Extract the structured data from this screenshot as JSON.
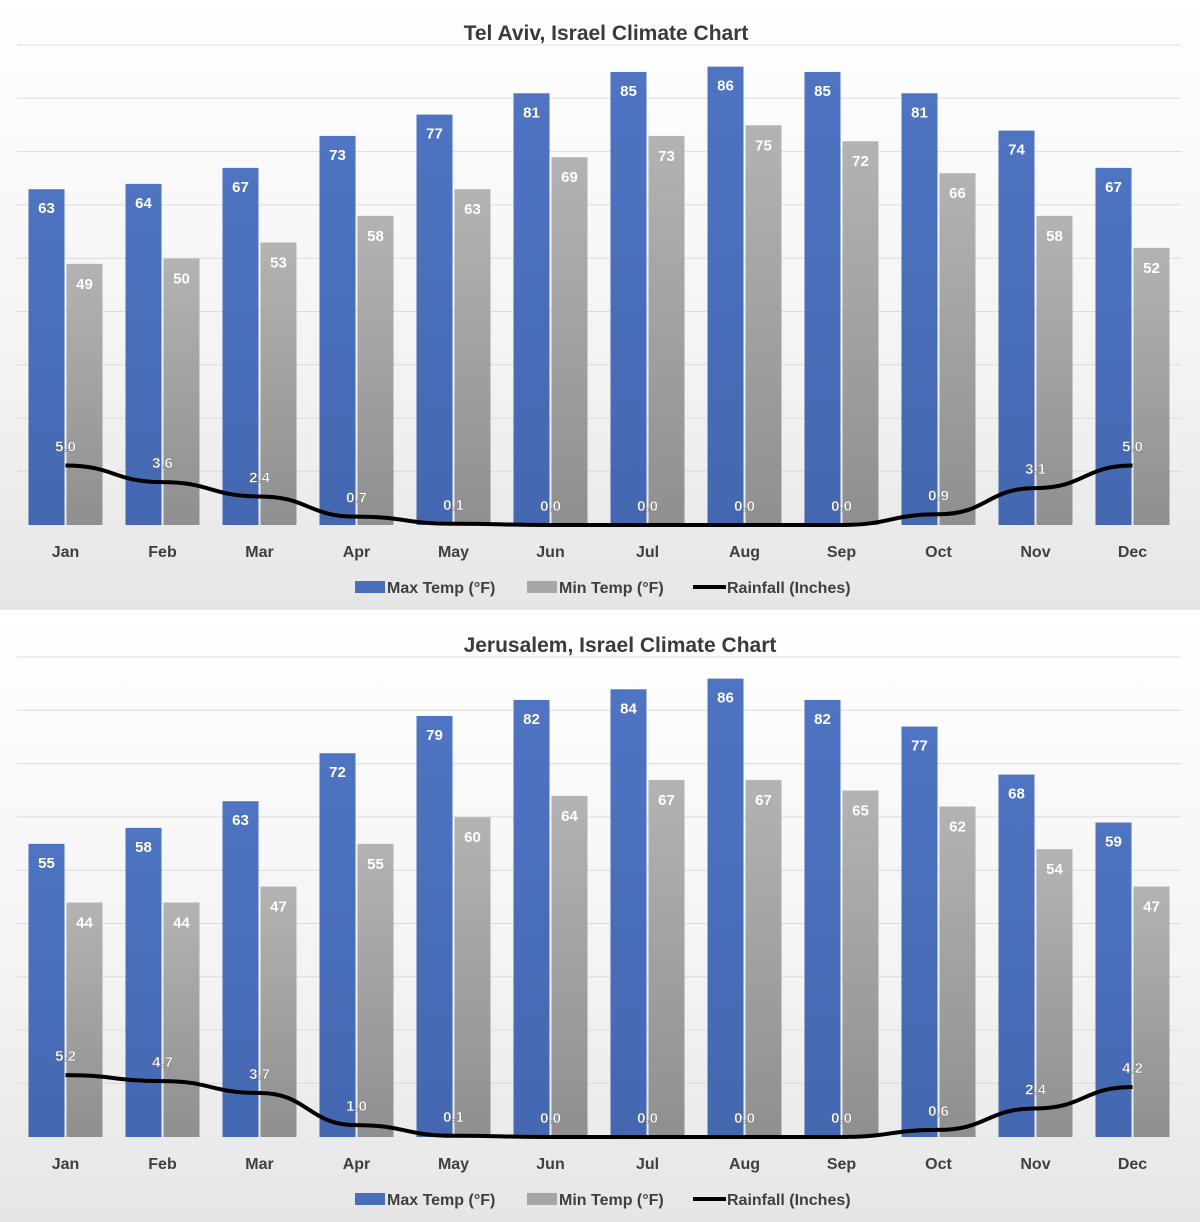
{
  "colors": {
    "max": "#4a6fba",
    "min": "#a6a6a6",
    "rain": "#000000"
  },
  "legend": {
    "max_label": "Max Temp (°F)",
    "min_label": "Min Temp (°F)",
    "rain_label": "Rainfall (Inches)"
  },
  "chart_data": [
    {
      "type": "bar",
      "title": "Tel Aviv, Israel Climate Chart",
      "categories": [
        "Jan",
        "Feb",
        "Mar",
        "Apr",
        "May",
        "Jun",
        "Jul",
        "Aug",
        "Sep",
        "Oct",
        "Nov",
        "Dec"
      ],
      "series": [
        {
          "name": "Max Temp (°F)",
          "type": "bar",
          "values": [
            63,
            64,
            67,
            73,
            77,
            81,
            85,
            86,
            85,
            81,
            74,
            67
          ]
        },
        {
          "name": "Min Temp (°F)",
          "type": "bar",
          "values": [
            49,
            50,
            53,
            58,
            63,
            69,
            73,
            75,
            72,
            66,
            58,
            52
          ]
        },
        {
          "name": "Rainfall (Inches)",
          "type": "line",
          "values": [
            5.0,
            3.6,
            2.4,
            0.7,
            0.1,
            0.0,
            0.0,
            0.0,
            0.0,
            0.9,
            3.1,
            5.0
          ]
        }
      ],
      "ylim": [
        0,
        100
      ],
      "grid": true,
      "legend_position": "bottom"
    },
    {
      "type": "bar",
      "title": "Jerusalem, Israel Climate Chart",
      "categories": [
        "Jan",
        "Feb",
        "Mar",
        "Apr",
        "May",
        "Jun",
        "Jul",
        "Aug",
        "Sep",
        "Oct",
        "Nov",
        "Dec"
      ],
      "series": [
        {
          "name": "Max Temp (°F)",
          "type": "bar",
          "values": [
            55,
            58,
            63,
            72,
            79,
            82,
            84,
            86,
            82,
            77,
            68,
            59
          ]
        },
        {
          "name": "Min Temp (°F)",
          "type": "bar",
          "values": [
            44,
            44,
            47,
            55,
            60,
            64,
            67,
            67,
            65,
            62,
            54,
            47
          ]
        },
        {
          "name": "Rainfall (Inches)",
          "type": "line",
          "values": [
            5.2,
            4.7,
            3.7,
            1.0,
            0.1,
            0.0,
            0.0,
            0.0,
            0.0,
            0.6,
            2.4,
            4.2
          ]
        }
      ],
      "ylim": [
        0,
        100
      ],
      "grid": true,
      "legend_position": "bottom"
    }
  ]
}
